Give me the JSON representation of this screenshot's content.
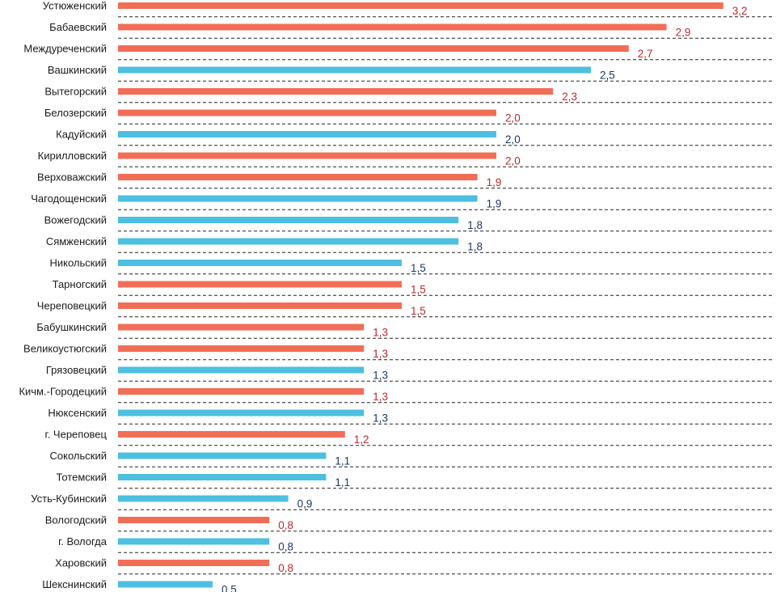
{
  "chart_data": {
    "type": "bar",
    "orientation": "horizontal",
    "title": "",
    "xlabel": "",
    "ylabel": "",
    "xlim": [
      0,
      3.3
    ],
    "grid": false,
    "legend": "none",
    "colors": {
      "red_bar": "#f26d56",
      "blue_bar": "#4dbfe0",
      "red_label": "#c0272d",
      "blue_label": "#1f3864"
    },
    "categories": [
      "Устюженский",
      "Бабаевский",
      "Междуреченский",
      "Вашкинский",
      "Вытегорский",
      "Белозерский",
      "Кадуйский",
      "Кирилловский",
      "Верховажский",
      "Чагодощенский",
      "Вожегодский",
      "Сямженский",
      "Никольский",
      "Тарногский",
      "Череповецкий",
      "Бабушкинский",
      "Великоустюгский",
      "Грязовецкий",
      "Кичм.-Городецкий",
      "Нюксенский",
      "г. Череповец",
      "Сокольский",
      "Тотемский",
      "Усть-Кубинский",
      "Вологодский",
      "г. Вологда",
      "Харовский",
      "Шекснинский"
    ],
    "values": [
      3.2,
      2.9,
      2.7,
      2.5,
      2.3,
      2.0,
      2.0,
      2.0,
      1.9,
      1.9,
      1.8,
      1.8,
      1.5,
      1.5,
      1.5,
      1.3,
      1.3,
      1.3,
      1.3,
      1.3,
      1.2,
      1.1,
      1.1,
      0.9,
      0.8,
      0.8,
      0.8,
      0.5
    ],
    "value_labels": [
      "3,2",
      "2,9",
      "2,7",
      "2,5",
      "2,3",
      "2,0",
      "2,0",
      "2,0",
      "1,9",
      "1,9",
      "1,8",
      "1,8",
      "1,5",
      "1,5",
      "1,5",
      "1,3",
      "1,3",
      "1,3",
      "1,3",
      "1,3",
      "1,2",
      "1,1",
      "1,1",
      "0,9",
      "0,8",
      "0,8",
      "0,8",
      "0,5"
    ],
    "bar_color_keys": [
      "red",
      "red",
      "red",
      "blue",
      "red",
      "red",
      "blue",
      "red",
      "red",
      "blue",
      "blue",
      "blue",
      "blue",
      "red",
      "red",
      "red",
      "red",
      "blue",
      "red",
      "blue",
      "red",
      "blue",
      "blue",
      "blue",
      "red",
      "blue",
      "red",
      "blue"
    ]
  }
}
